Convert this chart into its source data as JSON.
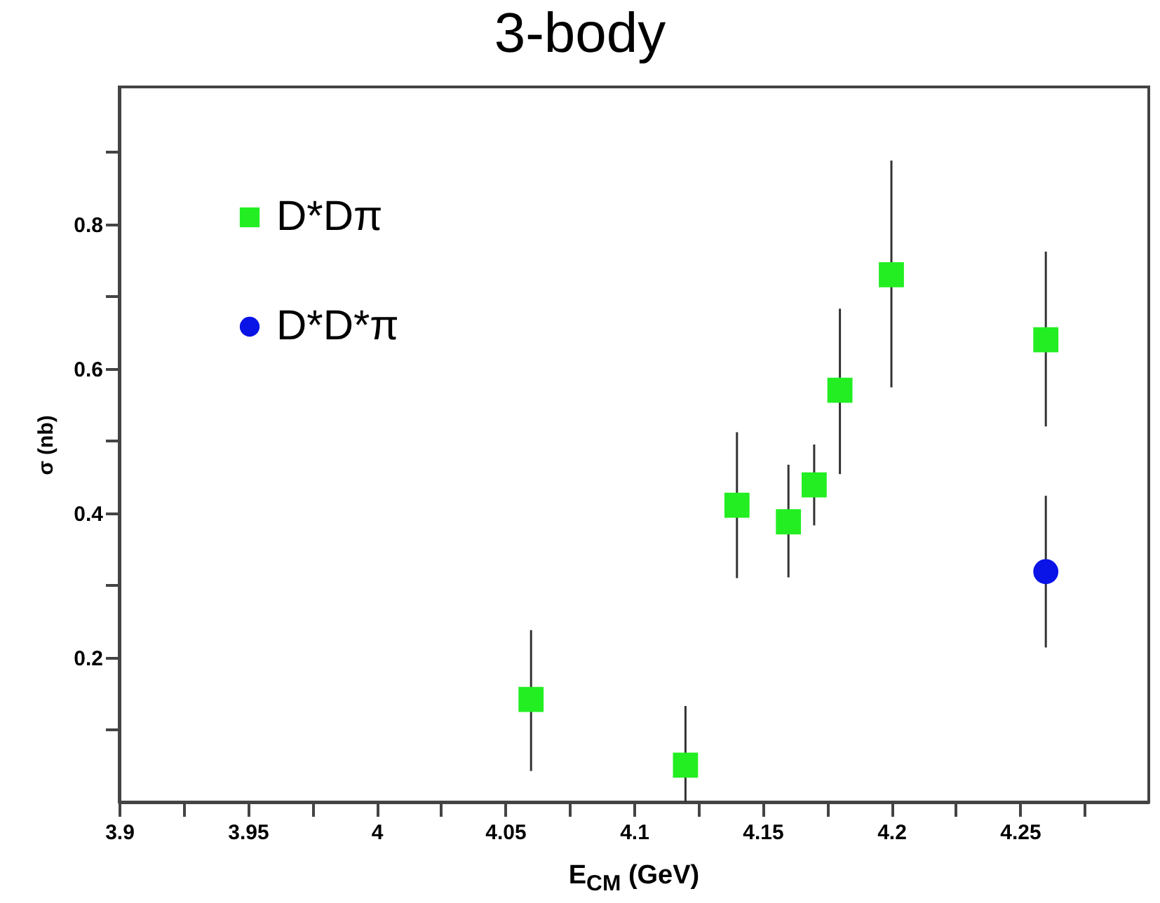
{
  "chart_data": {
    "type": "scatter",
    "title": "3-body",
    "xlabel": "E$_{CM}$ (GeV)",
    "ylabel": "σ (nb)",
    "xlim": [
      3.9,
      4.3
    ],
    "ylim": [
      0,
      0.99
    ],
    "xticks": [
      3.9,
      {
        "value": 3.925,
        "label": null
      },
      3.95,
      {
        "value": 3.975,
        "label": null
      },
      4,
      {
        "value": 4.025,
        "label": null
      },
      4.05,
      {
        "value": 4.075,
        "label": null
      },
      4.1,
      {
        "value": 4.125,
        "label": null
      },
      4.15,
      {
        "value": 4.175,
        "label": null
      },
      4.2,
      {
        "value": 4.225,
        "label": null
      },
      4.25,
      {
        "value": 4.275,
        "label": null
      }
    ],
    "yticks": [
      {
        "value": 0.1,
        "label": null
      },
      0.2,
      {
        "value": 0.3,
        "label": null
      },
      0.4,
      {
        "value": 0.5,
        "label": null
      },
      0.6,
      {
        "value": 0.7,
        "label": null
      },
      0.8,
      {
        "value": 0.9,
        "label": null
      }
    ],
    "legend": "top left",
    "grid": false,
    "series": [
      {
        "name": "D*Dπ",
        "color": "#22ee22",
        "marker": "square",
        "x": [
          4.06,
          4.12,
          4.14,
          4.16,
          4.17,
          4.18,
          4.2,
          4.26
        ],
        "values": [
          0.142,
          0.051,
          0.411,
          0.388,
          0.439,
          0.57,
          0.73,
          0.64
        ],
        "errors": [
          [
            0.043,
            0.238
          ],
          [
            0,
            0.133
          ],
          [
            0.31,
            0.512
          ],
          [
            0.311,
            0.467
          ],
          [
            0.383,
            0.495
          ],
          [
            0.454,
            0.683
          ],
          [
            0.574,
            0.888
          ],
          [
            0.52,
            0.762
          ]
        ]
      },
      {
        "name": "D*D*π",
        "color": "#0a14e6",
        "marker": "circle",
        "x": [
          4.26
        ],
        "values": [
          0.319
        ],
        "errors": [
          [
            0.214,
            0.424
          ]
        ]
      }
    ]
  }
}
